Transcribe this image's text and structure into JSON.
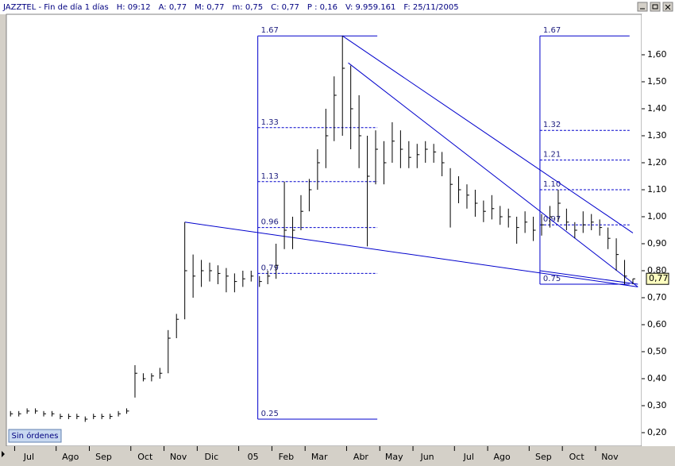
{
  "header": [
    "JAZZTEL - Fin de día 1 días",
    "H: 09:12",
    "A: 0,77",
    "M: 0,77",
    "m: 0,75",
    "C: 0,77",
    "P : 0,16",
    "V: 9.959.161",
    "F: 25/11/2005"
  ],
  "status": "Sin órdenes",
  "chart_data": {
    "type": "ohlc",
    "categories": [
      null,
      "Jul",
      null,
      null,
      null,
      null,
      "Ago",
      null,
      null,
      null,
      "Sep",
      null,
      null,
      null,
      null,
      "Oct",
      null,
      null,
      null,
      "Nov",
      null,
      null,
      null,
      "Dic",
      null,
      null,
      null,
      null,
      "05",
      null,
      null,
      null,
      "Feb",
      null,
      null,
      null,
      "Mar",
      null,
      null,
      null,
      null,
      "Abr",
      null,
      null,
      null,
      "May",
      null,
      null,
      null,
      "Jun",
      null,
      null,
      null,
      null,
      "Jul",
      null,
      null,
      null,
      "Ago",
      null,
      null,
      null,
      null,
      "Sep",
      null,
      null,
      null,
      "Oct",
      null,
      null,
      null,
      "Nov",
      null,
      null,
      null,
      null
    ],
    "high": [
      0.28,
      0.28,
      0.29,
      0.29,
      0.28,
      0.28,
      0.27,
      0.27,
      0.27,
      0.26,
      0.27,
      0.27,
      0.27,
      0.28,
      0.29,
      0.45,
      0.42,
      0.42,
      0.44,
      0.58,
      0.64,
      0.98,
      0.86,
      0.84,
      0.83,
      0.82,
      0.81,
      0.79,
      0.8,
      0.8,
      0.78,
      0.8,
      0.9,
      1.13,
      1.0,
      1.08,
      1.14,
      1.25,
      1.4,
      1.52,
      1.67,
      1.56,
      1.45,
      1.3,
      1.32,
      1.28,
      1.35,
      1.32,
      1.28,
      1.27,
      1.28,
      1.27,
      1.24,
      1.18,
      1.15,
      1.12,
      1.1,
      1.06,
      1.08,
      1.04,
      1.03,
      1.0,
      1.02,
      1.0,
      1.01,
      1.04,
      1.1,
      1.03,
      0.98,
      1.02,
      1.01,
      0.99,
      0.96,
      0.92,
      0.84,
      0.77
    ],
    "low": [
      0.26,
      0.26,
      0.27,
      0.27,
      0.26,
      0.26,
      0.25,
      0.25,
      0.25,
      0.24,
      0.25,
      0.25,
      0.25,
      0.26,
      0.27,
      0.33,
      0.39,
      0.39,
      0.4,
      0.42,
      0.55,
      0.62,
      0.7,
      0.74,
      0.76,
      0.75,
      0.72,
      0.72,
      0.74,
      0.76,
      0.74,
      0.75,
      0.77,
      0.88,
      0.88,
      0.95,
      1.02,
      1.1,
      1.18,
      1.28,
      1.3,
      1.25,
      1.18,
      0.89,
      1.12,
      1.12,
      1.2,
      1.18,
      1.18,
      1.18,
      1.2,
      1.2,
      1.15,
      0.96,
      1.05,
      1.03,
      1.0,
      0.98,
      0.99,
      0.97,
      0.96,
      0.9,
      0.94,
      0.91,
      0.93,
      0.96,
      0.98,
      0.95,
      0.92,
      0.94,
      0.95,
      0.93,
      0.88,
      0.8,
      0.75,
      0.75
    ],
    "close": [
      0.27,
      0.27,
      0.28,
      0.28,
      0.27,
      0.27,
      0.26,
      0.26,
      0.26,
      0.25,
      0.26,
      0.26,
      0.26,
      0.27,
      0.28,
      0.42,
      0.4,
      0.41,
      0.42,
      0.55,
      0.62,
      0.8,
      0.78,
      0.8,
      0.8,
      0.79,
      0.78,
      0.76,
      0.77,
      0.78,
      0.76,
      0.78,
      0.82,
      0.95,
      0.95,
      1.02,
      1.1,
      1.2,
      1.3,
      1.45,
      1.55,
      1.4,
      1.3,
      1.15,
      1.25,
      1.2,
      1.28,
      1.25,
      1.22,
      1.23,
      1.25,
      1.24,
      1.2,
      1.12,
      1.1,
      1.08,
      1.05,
      1.02,
      1.03,
      1.0,
      1.0,
      0.96,
      0.98,
      0.95,
      0.97,
      1.0,
      1.05,
      0.98,
      0.95,
      0.97,
      0.98,
      0.96,
      0.92,
      0.86,
      0.78,
      0.77
    ],
    "ylim": [
      0.15,
      1.75
    ],
    "yticks": [
      {
        "value": 0.2,
        "label": "0,20"
      },
      {
        "value": 0.3,
        "label": "0,30"
      },
      {
        "value": 0.4,
        "label": "0,40"
      },
      {
        "value": 0.5,
        "label": "0,50"
      },
      {
        "value": 0.6,
        "label": "0,60"
      },
      {
        "value": 0.7,
        "label": "0,70"
      },
      {
        "value": 0.8,
        "label": "0,80"
      },
      {
        "value": 0.9,
        "label": "0,90"
      },
      {
        "value": 1.0,
        "label": "1,00"
      },
      {
        "value": 1.1,
        "label": "1,10"
      },
      {
        "value": 1.2,
        "label": "1,20"
      },
      {
        "value": 1.3,
        "label": "1,30"
      },
      {
        "value": 1.4,
        "label": "1,40"
      },
      {
        "value": 1.5,
        "label": "1,50"
      },
      {
        "value": 1.6,
        "label": "1,60"
      }
    ],
    "last_price": {
      "value": 0.77,
      "label": "0,77"
    },
    "color": "#000000",
    "annotation_color": "#0000cc",
    "fib_boxes": [
      {
        "from": 29.8,
        "to": 44.2,
        "levels": [
          1.67,
          1.33,
          1.13,
          0.96,
          0.79,
          0.25
        ]
      },
      {
        "from": 63.8,
        "to": 74.6,
        "levels": [
          1.67,
          1.32,
          1.21,
          {
            "value": 1.1,
            "label": "1.10"
          },
          0.97,
          0.75
        ]
      }
    ],
    "trend_lines": [
      {
        "from": [
          21.0,
          0.98
        ],
        "to": [
          75.6,
          0.74
        ]
      },
      {
        "from": [
          40.0,
          1.67
        ],
        "to": [
          75.0,
          0.94
        ]
      },
      {
        "from": [
          40.7,
          1.57
        ],
        "to": [
          75.6,
          0.74
        ]
      },
      {
        "from": [
          63.8,
          0.8
        ],
        "to": [
          75.6,
          0.75
        ]
      }
    ]
  }
}
